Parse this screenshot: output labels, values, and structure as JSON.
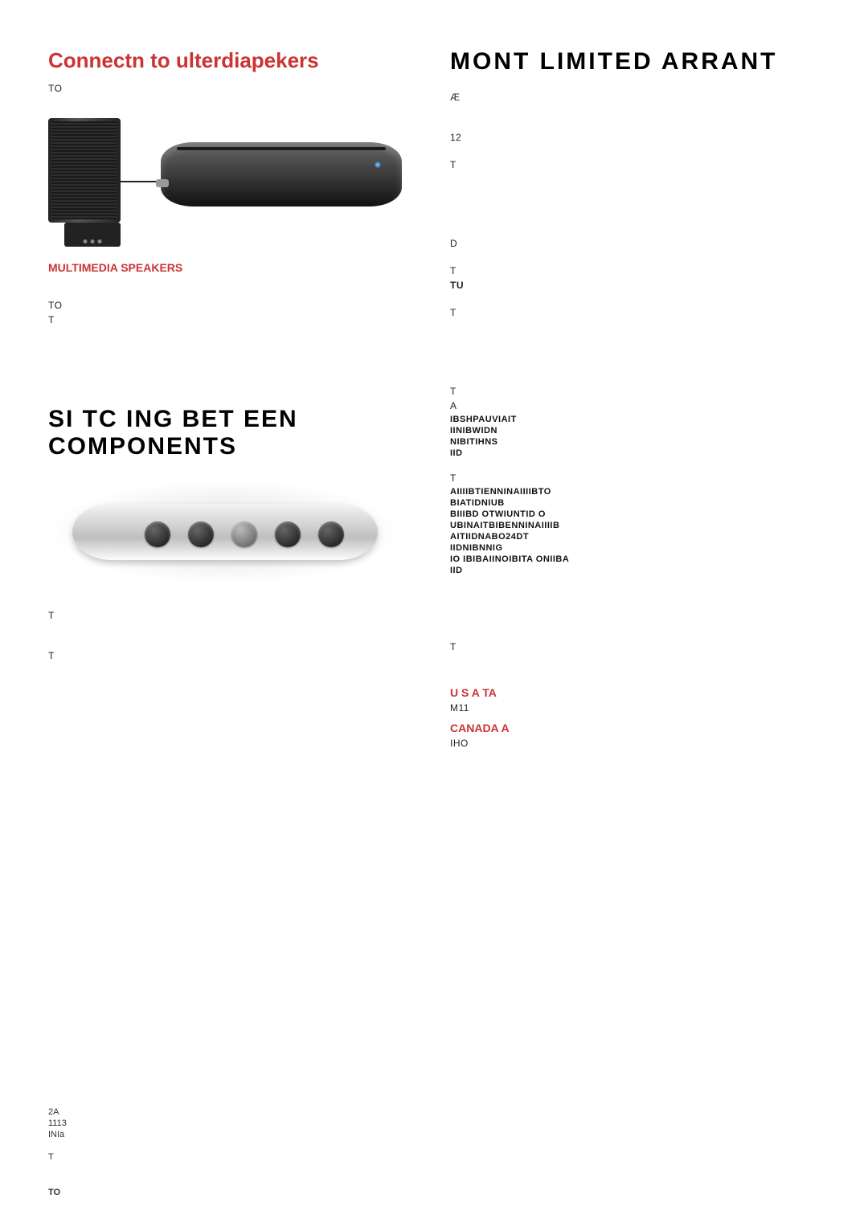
{
  "left": {
    "connect_title": "Connectn to ulterdiapekers",
    "connect_intro": "TO",
    "speakers_caption": "MULTIMEDIA SPEAKERS",
    "note1": "TO",
    "note2": "T",
    "switch_title": "SI   TC  ING BET   EEN COMPONENTS",
    "switch_note1": "T",
    "switch_note2": "T"
  },
  "right": {
    "warranty_title": "MONT    LIMITED  ARRANT",
    "line_AE": "Æ",
    "line_12": "12",
    "line_T1": "T",
    "line_D": "D",
    "line_T2": "T",
    "line_TU": "TU",
    "line_T3": "T",
    "line_T4": "T",
    "line_A": "A",
    "frag1": "IBSHPAUVIAIT",
    "frag2": "IINIBWIDN",
    "frag3": "NIBITIHNS",
    "frag4": "IID",
    "line_T5": "T",
    "frag5": "AIIIIBTIENNINAIIIIBTO",
    "frag6": "BIATIDNIUB",
    "frag7": "BIIIBD OTWIUNTID O",
    "frag8": "UBINAITBIBENNINAIIIIB",
    "frag9": "AITIIDNABO24DT",
    "frag10": "IIDNIBNNIG",
    "frag11": "IO IBIBAIINOIBITA ONIIBA",
    "frag12": "IID",
    "line_T6": "T",
    "usa_head": "U S A TA",
    "usa_line": "M11",
    "canada_head": "CANADA A",
    "canada_line": "IHO"
  },
  "footer": {
    "l1": "2A",
    "l2": "1113",
    "l3": "INIa",
    "l4": "T",
    "l5": "TO"
  },
  "colors": {
    "accent": "#cc3333",
    "text": "#000000",
    "body": "#333333",
    "bg": "#ffffff"
  }
}
